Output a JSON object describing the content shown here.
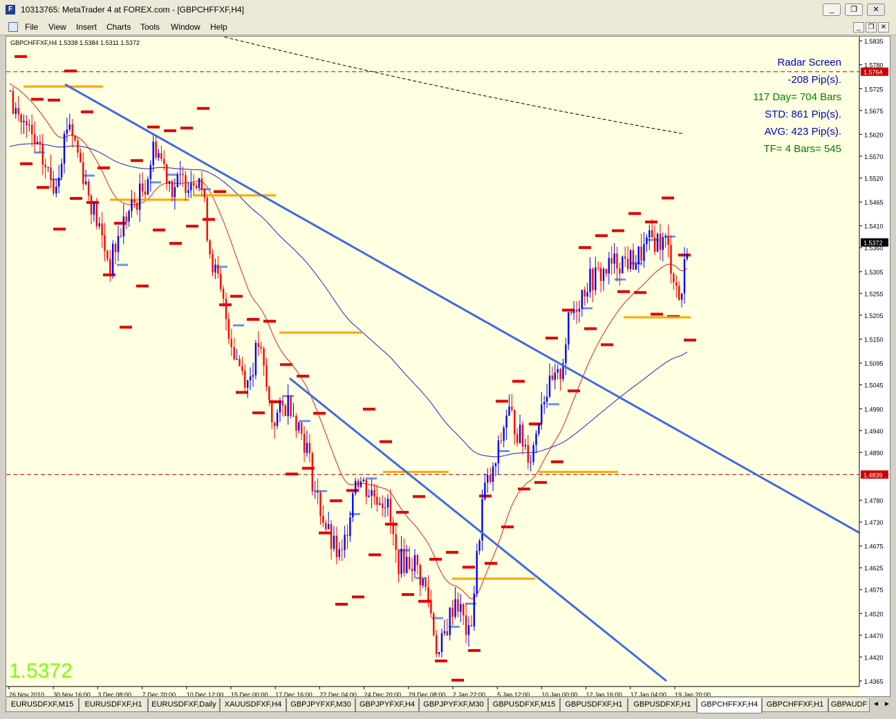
{
  "window": {
    "app_icon": "F",
    "title": "10313765: MetaTrader 4 at FOREX.com - [GBPCHFFXF,H4]",
    "controls": [
      "_",
      "❐",
      "✕"
    ],
    "mdi_controls": [
      "_",
      "❐",
      "✕"
    ]
  },
  "menu": [
    "File",
    "View",
    "Insert",
    "Charts",
    "Tools",
    "Window",
    "Help"
  ],
  "chart": {
    "info": "GBPCHFFXF,H4  1.5338 1.5384 1.5311 1.5372",
    "big_price": "1.5372",
    "radar": [
      {
        "text": "Radar Screen",
        "color": "#0000cc"
      },
      {
        "text": "-208 Pip(s).",
        "color": "#0000cc"
      },
      {
        "text": "117 Day= 704 Bars",
        "color": "#008000"
      },
      {
        "text": "STD: 861 Pip(s).",
        "color": "#0000cc"
      },
      {
        "text": "AVG: 423 Pip(s).",
        "color": "#0000cc"
      },
      {
        "text": "TF= 4 Bars= 545",
        "color": "#008000"
      }
    ],
    "price_axis": [
      "1.5835",
      "1.5780",
      "1.5725",
      "1.5675",
      "1.5620",
      "1.5570",
      "1.5520",
      "1.5465",
      "1.5410",
      "1.5360",
      "1.5305",
      "1.5255",
      "1.5205",
      "1.5150",
      "1.5095",
      "1.5045",
      "1.4990",
      "1.4940",
      "1.4890",
      "1.4780",
      "1.4730",
      "1.4675",
      "1.4625",
      "1.4575",
      "1.4520",
      "1.4470",
      "1.4420",
      "1.4365"
    ],
    "highlight_labels": [
      {
        "text": "1.5764",
        "value": 1.5764
      },
      {
        "text": "1.5372",
        "value": 1.5372
      },
      {
        "text": "1.4839",
        "value": 1.4839
      }
    ],
    "time_axis": [
      "26 Nov 2010",
      "30 Nov 16:00",
      "3 Dec 08:00",
      "7 Dec 20:00",
      "10 Dec 12:00",
      "15 Dec 00:00",
      "17 Dec 16:00",
      "22 Dec 04:00",
      "24 Dec 20:00",
      "29 Dec 08:00",
      "2 Jan 22:00",
      "5 Jan 12:00",
      "10 Jan 00:00",
      "12 Jan 16:00",
      "17 Jan 04:00",
      "19 Jan 20:00"
    ],
    "colors": {
      "background": "#ffffe1",
      "bull": "#0000ff",
      "bear": "#ff0000",
      "trendline": "#4169e1",
      "level": "#ffa500",
      "pivot_red": "#e00000",
      "pivot_blue": "#6495ed",
      "ma_blue": "#2020d0",
      "ma_red": "#e02020",
      "ma_black": "#000000",
      "hline": "#cc0000",
      "big_price": "#7fff00"
    }
  },
  "tabs": [
    "EURUSDFXF,M15",
    "EURUSDFXF,H1",
    "EURUSDFXF,Daily",
    "XAUUSDFXF,H4",
    "GBPJPYFXF,M30",
    "GBPJPYFXF,H4",
    "GBPJPYFXF,M30",
    "GBPUSDFXF,M15",
    "GBPUSDFXF,H1",
    "GBPUSDFXF,H1",
    "GBPCHFFXF,H4",
    "GBPCHFFXF,H1",
    "GBPAUDF"
  ],
  "active_tab": "GBPCHFFXF,H4"
}
